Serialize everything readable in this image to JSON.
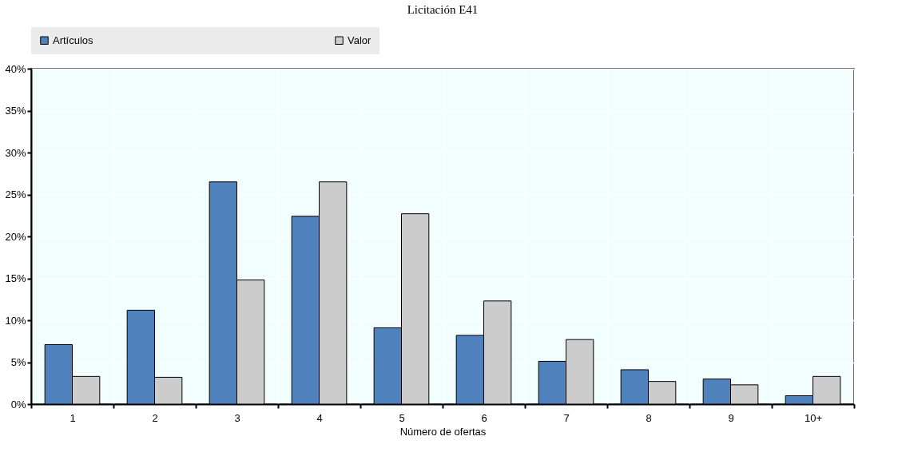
{
  "chart_data": {
    "type": "bar",
    "title": "Licitación E41",
    "xlabel": "Número de ofertas",
    "categories": [
      "1",
      "2",
      "3",
      "4",
      "5",
      "6",
      "7",
      "8",
      "9",
      "10+"
    ],
    "series": [
      {
        "name": "Artículos",
        "color": "#4f81bd",
        "values": [
          7.1,
          11.2,
          26.5,
          22.4,
          9.1,
          8.2,
          5.1,
          4.1,
          3.0,
          1.0
        ]
      },
      {
        "name": "Valor",
        "color": "#cccccc",
        "values": [
          3.3,
          3.2,
          14.8,
          26.5,
          22.7,
          12.3,
          7.7,
          2.7,
          2.3,
          3.3
        ]
      }
    ],
    "ylim": [
      0,
      40
    ],
    "yticks": [
      {
        "value": 0,
        "label": "0%"
      },
      {
        "value": 5,
        "label": "5%"
      },
      {
        "value": 10,
        "label": "10%"
      },
      {
        "value": 15,
        "label": "15%"
      },
      {
        "value": 20,
        "label": "20%"
      },
      {
        "value": 25,
        "label": "25%"
      },
      {
        "value": 30,
        "label": "30%"
      },
      {
        "value": 35,
        "label": "35%"
      },
      {
        "value": 40,
        "label": "40%"
      }
    ],
    "grid": true,
    "legend": "top"
  }
}
